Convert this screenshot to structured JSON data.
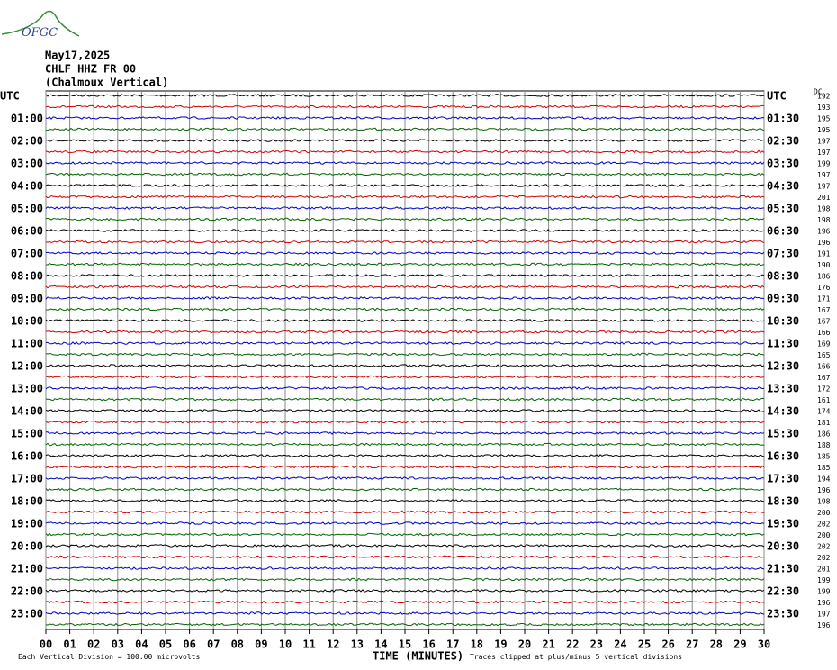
{
  "logo": "OFGC",
  "header": {
    "date": "May17,2025",
    "station": "CHLF HHZ FR 00",
    "component": "(Chalmoux Vertical)"
  },
  "left_labels": [
    "UTC",
    "01:00",
    "02:00",
    "03:00",
    "04:00",
    "05:00",
    "06:00",
    "07:00",
    "08:00",
    "09:00",
    "10:00",
    "11:00",
    "12:00",
    "13:00",
    "14:00",
    "15:00",
    "16:00",
    "17:00",
    "18:00",
    "19:00",
    "20:00",
    "21:00",
    "22:00",
    "23:00"
  ],
  "right_labels": [
    "UTC",
    "01:30",
    "02:30",
    "03:30",
    "04:30",
    "05:30",
    "06:30",
    "07:30",
    "08:30",
    "09:30",
    "10:30",
    "11:30",
    "12:30",
    "13:30",
    "14:30",
    "15:30",
    "16:30",
    "17:30",
    "18:30",
    "19:30",
    "20:30",
    "21:30",
    "22:30",
    "23:30"
  ],
  "dc_label": "DC",
  "dc_values": [
    192,
    193,
    195,
    195,
    197,
    197,
    199,
    197,
    197,
    201,
    198,
    198,
    196,
    196,
    191,
    190,
    186,
    176,
    171,
    167,
    167,
    166,
    169,
    165,
    166,
    167,
    172,
    161,
    174,
    181,
    186,
    188,
    185,
    185,
    194,
    196,
    198,
    200,
    202,
    200,
    202,
    202,
    201,
    199,
    199,
    196,
    197,
    196
  ],
  "x_ticks": [
    "00",
    "01",
    "02",
    "03",
    "04",
    "05",
    "06",
    "07",
    "08",
    "09",
    "10",
    "11",
    "12",
    "13",
    "14",
    "15",
    "16",
    "17",
    "18",
    "19",
    "20",
    "21",
    "22",
    "23",
    "24",
    "25",
    "26",
    "27",
    "28",
    "29",
    "30"
  ],
  "x_axis_label": "TIME (MINUTES)",
  "footer": {
    "scale": "Each Vertical Division =  100.00 microvolts",
    "clip": "Traces clipped at plus/minus 5 vertical divisions"
  }
}
